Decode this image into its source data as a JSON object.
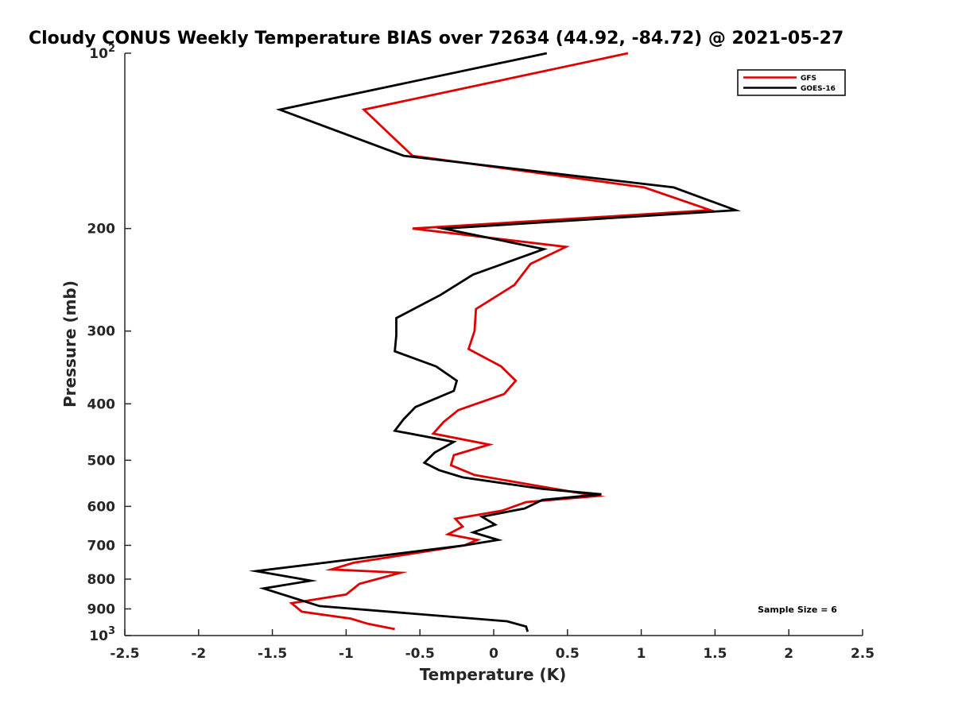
{
  "chart_data": {
    "type": "line",
    "title": "Cloudy CONUS Weekly Temperature BIAS over 72634 (44.92, -84.72) @ 2021-05-27",
    "xlabel": "Temperature (K)",
    "ylabel": "Pressure (mb)",
    "xlim": [
      -2.5,
      2.5
    ],
    "ylim": [
      100,
      1000
    ],
    "y_scale": "log",
    "y_reversed": true,
    "grid": false,
    "legend_position": "top-right",
    "x_ticks": [
      -2.5,
      -2,
      -1.5,
      -1,
      -0.5,
      0,
      0.5,
      1,
      1.5,
      2,
      2.5
    ],
    "x_tick_labels": [
      "-2.5",
      "-2",
      "-1.5",
      "-1",
      "-0.5",
      "0",
      "0.5",
      "1",
      "1.5",
      "2",
      "2.5"
    ],
    "y_ticks": [
      200,
      300,
      400,
      500,
      600,
      700,
      800,
      900
    ],
    "y_tick_labels": [
      "200",
      "300",
      "400",
      "500",
      "600",
      "700",
      "800",
      "900"
    ],
    "y_top_label": {
      "base": "10",
      "exp": "2"
    },
    "y_bottom_label": {
      "base": "10",
      "exp": "3"
    },
    "annotation": "Sample Size = 6",
    "series": [
      {
        "name": "GFS",
        "color": "#e00000",
        "points": [
          [
            0.91,
            100
          ],
          [
            -0.88,
            125
          ],
          [
            -0.55,
            150
          ],
          [
            1.02,
            170
          ],
          [
            1.47,
            186
          ],
          [
            -0.55,
            200
          ],
          [
            0.49,
            215
          ],
          [
            0.25,
            230
          ],
          [
            0.14,
            250
          ],
          [
            -0.12,
            275
          ],
          [
            -0.13,
            300
          ],
          [
            -0.17,
            322
          ],
          [
            0.05,
            345
          ],
          [
            0.15,
            365
          ],
          [
            0.07,
            385
          ],
          [
            -0.24,
            410
          ],
          [
            -0.34,
            430
          ],
          [
            -0.41,
            450
          ],
          [
            -0.03,
            470
          ],
          [
            -0.27,
            490
          ],
          [
            -0.29,
            510
          ],
          [
            -0.13,
            530
          ],
          [
            0.33,
            555
          ],
          [
            0.7,
            576
          ],
          [
            0.22,
            590
          ],
          [
            0.06,
            610
          ],
          [
            -0.26,
            630
          ],
          [
            -0.21,
            650
          ],
          [
            -0.31,
            670
          ],
          [
            -0.11,
            685
          ],
          [
            -0.2,
            700
          ],
          [
            -0.95,
            750
          ],
          [
            -1.1,
            770
          ],
          [
            -0.63,
            780
          ],
          [
            -0.91,
            815
          ],
          [
            -1.0,
            850
          ],
          [
            -1.37,
            880
          ],
          [
            -1.3,
            910
          ],
          [
            -0.97,
            935
          ],
          [
            -0.85,
            955
          ],
          [
            -0.67,
            975
          ]
        ]
      },
      {
        "name": "GOES-16",
        "color": "#000000",
        "points": [
          [
            0.36,
            100
          ],
          [
            -1.45,
            125
          ],
          [
            -0.61,
            150
          ],
          [
            1.22,
            170
          ],
          [
            1.64,
            186
          ],
          [
            -0.34,
            200
          ],
          [
            0.34,
            217
          ],
          [
            -0.14,
            240
          ],
          [
            -0.36,
            260
          ],
          [
            -0.66,
            285
          ],
          [
            -0.66,
            305
          ],
          [
            -0.67,
            325
          ],
          [
            -0.39,
            345
          ],
          [
            -0.25,
            365
          ],
          [
            -0.27,
            380
          ],
          [
            -0.53,
            405
          ],
          [
            -0.61,
            425
          ],
          [
            -0.67,
            445
          ],
          [
            -0.27,
            465
          ],
          [
            -0.4,
            485
          ],
          [
            -0.47,
            505
          ],
          [
            -0.37,
            520
          ],
          [
            -0.21,
            535
          ],
          [
            0.33,
            560
          ],
          [
            0.73,
            572
          ],
          [
            0.33,
            585
          ],
          [
            0.21,
            605
          ],
          [
            -0.08,
            625
          ],
          [
            0.01,
            645
          ],
          [
            -0.14,
            665
          ],
          [
            0.03,
            685
          ],
          [
            -0.2,
            700
          ],
          [
            -1.24,
            755
          ],
          [
            -1.61,
            775
          ],
          [
            -1.24,
            805
          ],
          [
            -1.56,
            830
          ],
          [
            -1.18,
            890
          ],
          [
            0.09,
            945
          ],
          [
            0.22,
            965
          ],
          [
            0.23,
            985
          ]
        ]
      }
    ]
  }
}
